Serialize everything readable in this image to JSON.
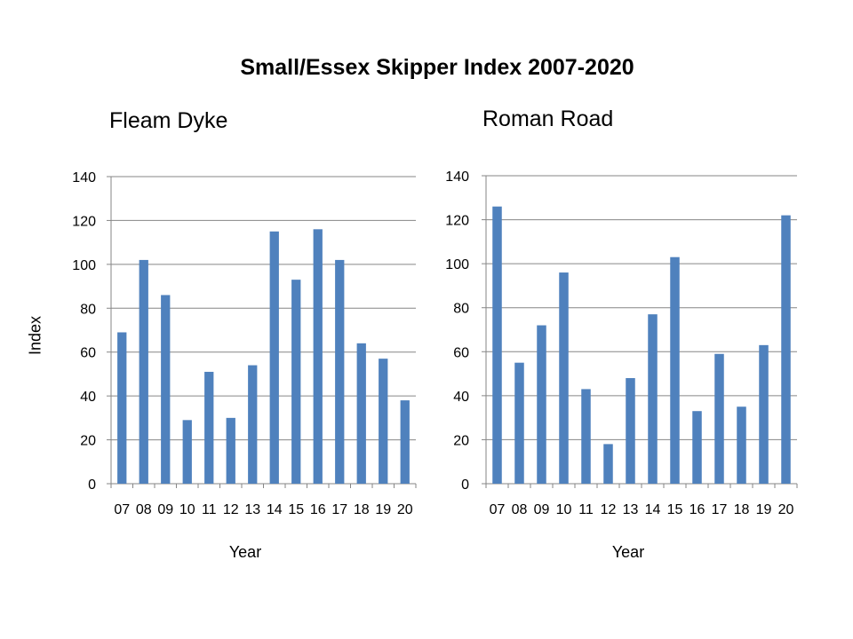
{
  "title": "Small/Essex Skipper Index 2007-2020",
  "chart_data": [
    {
      "type": "bar",
      "subtitle": "Fleam Dyke",
      "xlabel": "Year",
      "ylabel": "Index",
      "categories": [
        "07",
        "08",
        "09",
        "10",
        "11",
        "12",
        "13",
        "14",
        "15",
        "16",
        "17",
        "18",
        "19",
        "20"
      ],
      "values": [
        69,
        102,
        86,
        29,
        51,
        30,
        54,
        115,
        93,
        116,
        102,
        64,
        57,
        38
      ],
      "ylim": [
        0,
        140
      ],
      "yticks": [
        0,
        20,
        40,
        60,
        80,
        100,
        120,
        140
      ],
      "grid": true,
      "bar_color": "#4f81bd"
    },
    {
      "type": "bar",
      "subtitle": "Roman Road",
      "xlabel": "Year",
      "ylabel": "",
      "categories": [
        "07",
        "08",
        "09",
        "10",
        "11",
        "12",
        "13",
        "14",
        "15",
        "16",
        "17",
        "18",
        "19",
        "20"
      ],
      "values": [
        126,
        55,
        72,
        96,
        43,
        18,
        48,
        77,
        103,
        33,
        59,
        35,
        63,
        122
      ],
      "ylim": [
        0,
        140
      ],
      "yticks": [
        0,
        20,
        40,
        60,
        80,
        100,
        120,
        140
      ],
      "grid": true,
      "bar_color": "#4f81bd"
    }
  ]
}
